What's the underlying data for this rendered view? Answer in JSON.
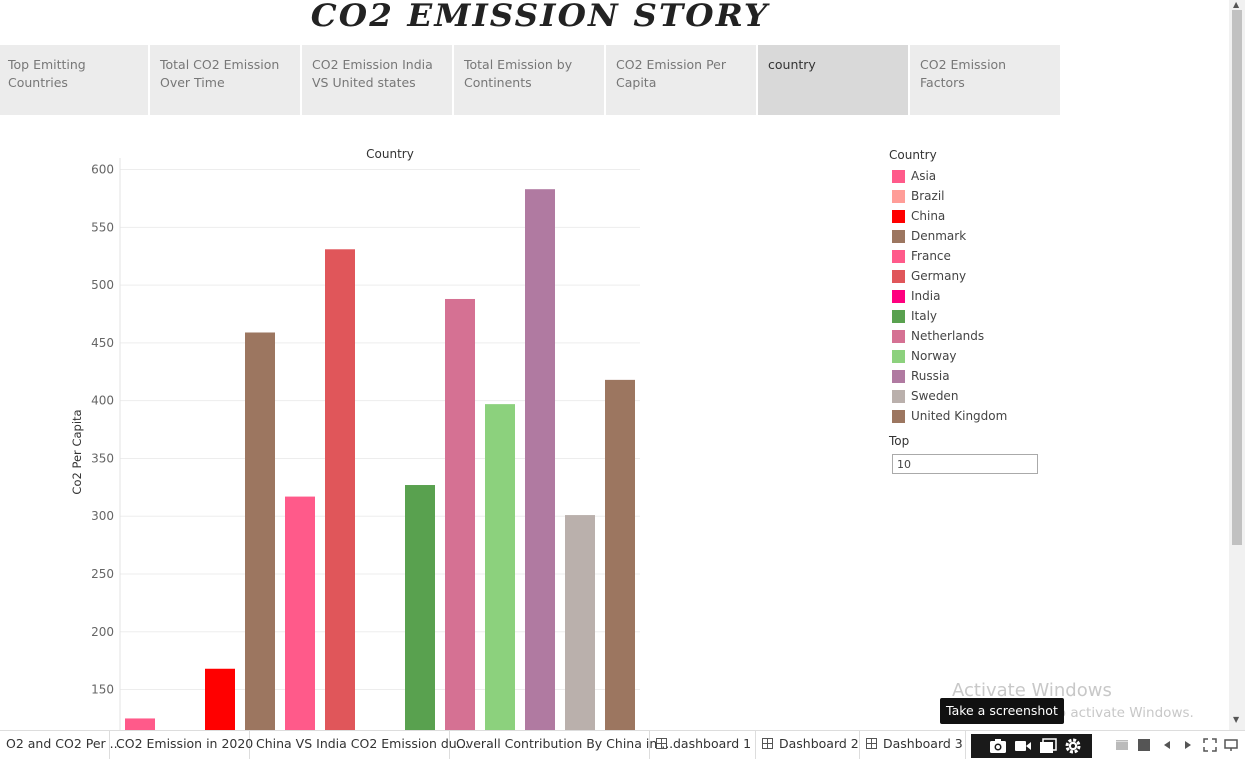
{
  "story": {
    "title": "CO2 EMISSION STORY",
    "points": [
      {
        "label": "Top Emitting Countries",
        "active": false
      },
      {
        "label": "Total CO2 Emission Over Time",
        "active": false
      },
      {
        "label": "CO2 Emission India VS United states",
        "active": false
      },
      {
        "label": "Total Emission by Continents",
        "active": false
      },
      {
        "label": "CO2 Emission Per Capita",
        "active": false
      },
      {
        "label": "country",
        "active": true
      },
      {
        "label": "CO2 Emission Factors",
        "active": false
      }
    ]
  },
  "chart_data": {
    "type": "bar",
    "title": "Country",
    "xlabel": "",
    "ylabel": "Co2 Per Capita",
    "ylim": [
      115,
      610
    ],
    "yticks": [
      150,
      200,
      250,
      300,
      350,
      400,
      450,
      500,
      550,
      600
    ],
    "grid": true,
    "categories": [
      "Asia",
      "Brazil",
      "China",
      "Denmark",
      "France",
      "Germany",
      "India",
      "Italy",
      "Netherlands",
      "Norway",
      "Russia",
      "Sweden",
      "United Kingdom"
    ],
    "values": [
      125,
      null,
      168,
      459,
      317,
      531,
      null,
      327,
      488,
      397,
      583,
      301,
      418
    ],
    "colors": [
      "#ff5a8a",
      "#ff9d98",
      "#ff0000",
      "#9c7660",
      "#ff5a8a",
      "#e0565a",
      "#ff007f",
      "#59a14f",
      "#d57193",
      "#8cd17d",
      "#b07aa1",
      "#bab0ac",
      "#9c7660"
    ]
  },
  "legend": {
    "title": "Country",
    "items": [
      {
        "label": "Asia",
        "color": "#ff5a8a"
      },
      {
        "label": "Brazil",
        "color": "#ff9d98"
      },
      {
        "label": "China",
        "color": "#ff0000"
      },
      {
        "label": "Denmark",
        "color": "#9c7660"
      },
      {
        "label": "France",
        "color": "#ff5a8a"
      },
      {
        "label": "Germany",
        "color": "#e0565a"
      },
      {
        "label": "India",
        "color": "#ff007f"
      },
      {
        "label": "Italy",
        "color": "#59a14f"
      },
      {
        "label": "Netherlands",
        "color": "#d57193"
      },
      {
        "label": "Norway",
        "color": "#8cd17d"
      },
      {
        "label": "Russia",
        "color": "#b07aa1"
      },
      {
        "label": "Sweden",
        "color": "#bab0ac"
      },
      {
        "label": "United Kingdom",
        "color": "#9c7660"
      }
    ]
  },
  "top_filter": {
    "label": "Top",
    "value": "10"
  },
  "watermark": {
    "title": "Activate Windows",
    "subtitle": "Go to Settings to activate Windows."
  },
  "tooltip": "Take a screenshot",
  "bottom_tabs": [
    {
      "label": "O2 and CO2 Per ...",
      "icon": ""
    },
    {
      "label": "CO2 Emission in 2020",
      "icon": ""
    },
    {
      "label": "China VS India CO2 Emission du...",
      "icon": ""
    },
    {
      "label": "Overall Contribution By China in ...",
      "icon": ""
    },
    {
      "label": "dashboard 1",
      "icon": "dashboard-icon"
    },
    {
      "label": "Dashboard 2",
      "icon": "dashboard-icon"
    },
    {
      "label": "Dashboard 3",
      "icon": "dashboard-icon"
    }
  ]
}
